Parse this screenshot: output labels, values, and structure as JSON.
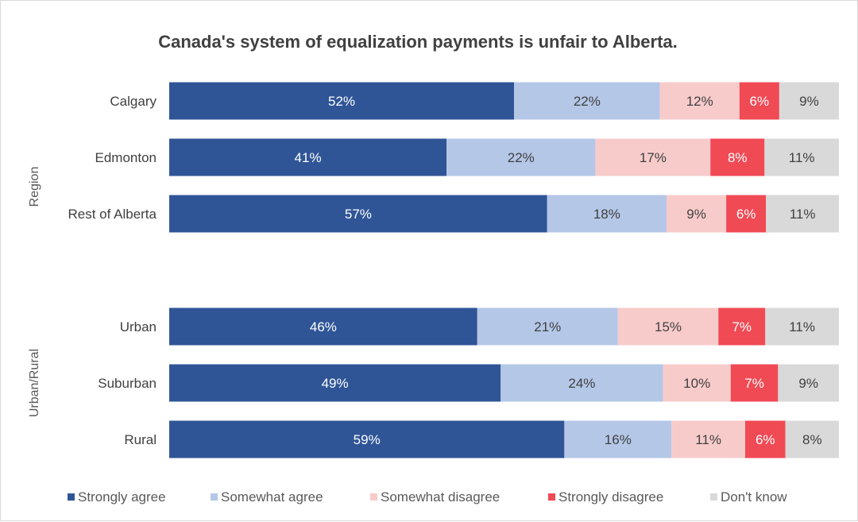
{
  "chart_data": {
    "type": "bar",
    "orientation": "horizontal",
    "stacked": true,
    "title": "Canada's system of equalization payments is unfair to Alberta.",
    "value_suffix": "%",
    "groups": [
      {
        "label": "Region",
        "categories": [
          "Calgary",
          "Edmonton",
          "Rest of Alberta"
        ]
      },
      {
        "label": "Urban/Rural",
        "categories": [
          "Urban",
          "Suburban",
          "Rural"
        ]
      }
    ],
    "categories": [
      "Calgary",
      "Edmonton",
      "Rest of Alberta",
      "Urban",
      "Suburban",
      "Rural"
    ],
    "series": [
      {
        "name": "Strongly agree",
        "color": "#2f5597",
        "label_color": "#ffffff",
        "values": [
          52,
          41,
          57,
          46,
          49,
          59
        ]
      },
      {
        "name": "Somewhat agree",
        "color": "#b4c7e7",
        "label_color": "#404040",
        "values": [
          22,
          22,
          18,
          21,
          24,
          16
        ]
      },
      {
        "name": "Somewhat disagree",
        "color": "#f8cbcb",
        "label_color": "#404040",
        "values": [
          12,
          17,
          9,
          15,
          10,
          11
        ]
      },
      {
        "name": "Strongly disagree",
        "color": "#f04a55",
        "label_color": "#ffffff",
        "values": [
          6,
          8,
          6,
          7,
          7,
          6
        ]
      },
      {
        "name": "Don't know",
        "color": "#d9d9d9",
        "label_color": "#404040",
        "values": [
          9,
          11,
          11,
          11,
          9,
          8
        ]
      }
    ],
    "legend_position": "bottom",
    "grid": false
  }
}
